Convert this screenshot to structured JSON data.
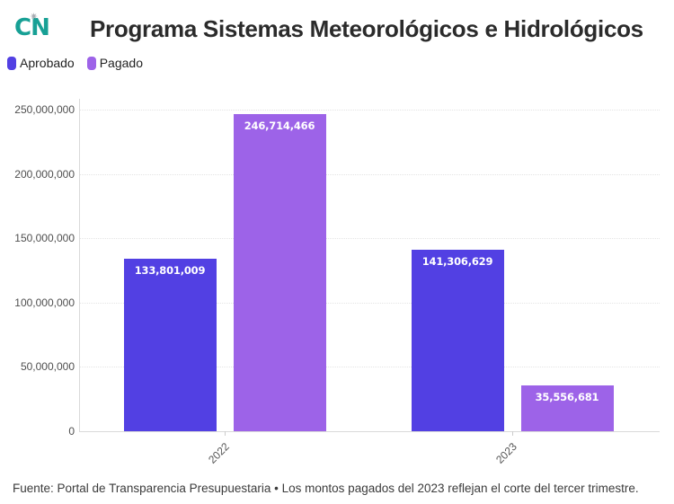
{
  "header": {
    "logo_text": "CN",
    "logo_ornament": "✷",
    "title": "Programa Sistemas Meteorológicos e Hidrológicos"
  },
  "legend": [
    {
      "label": "Aprobado",
      "color": "#5240e3"
    },
    {
      "label": "Pagado",
      "color": "#9d63e8"
    }
  ],
  "chart_data": {
    "type": "bar",
    "title": "Programa Sistemas Meteorológicos e Hidrológicos",
    "categories": [
      "2022",
      "2023"
    ],
    "series": [
      {
        "name": "Aprobado",
        "color": "#5240e3",
        "values": [
          133801009,
          141306629
        ],
        "labels": [
          "133,801,009",
          "141,306,629"
        ]
      },
      {
        "name": "Pagado",
        "color": "#9d63e8",
        "values": [
          246714466,
          35556681
        ],
        "labels": [
          "246,714,466",
          "35,556,681"
        ]
      }
    ],
    "xlabel": "",
    "ylabel": "",
    "ylim": [
      0,
      250000000
    ],
    "yticks": [
      {
        "value": 250000000,
        "label": "250,000,000"
      },
      {
        "value": 200000000,
        "label": "200,000,000"
      },
      {
        "value": 150000000,
        "label": "150,000,000"
      },
      {
        "value": 100000000,
        "label": "100,000,000"
      },
      {
        "value": 50000000,
        "label": "50,000,000"
      },
      {
        "value": 0,
        "label": "0"
      }
    ],
    "grid": true,
    "legend_position": "top-left",
    "value_label_color": "#ffffff"
  },
  "footer": {
    "text": "Fuente: Portal de Transparencia Presupuestaria • Los montos pagados del 2023 reflejan el corte del tercer trimestre."
  }
}
